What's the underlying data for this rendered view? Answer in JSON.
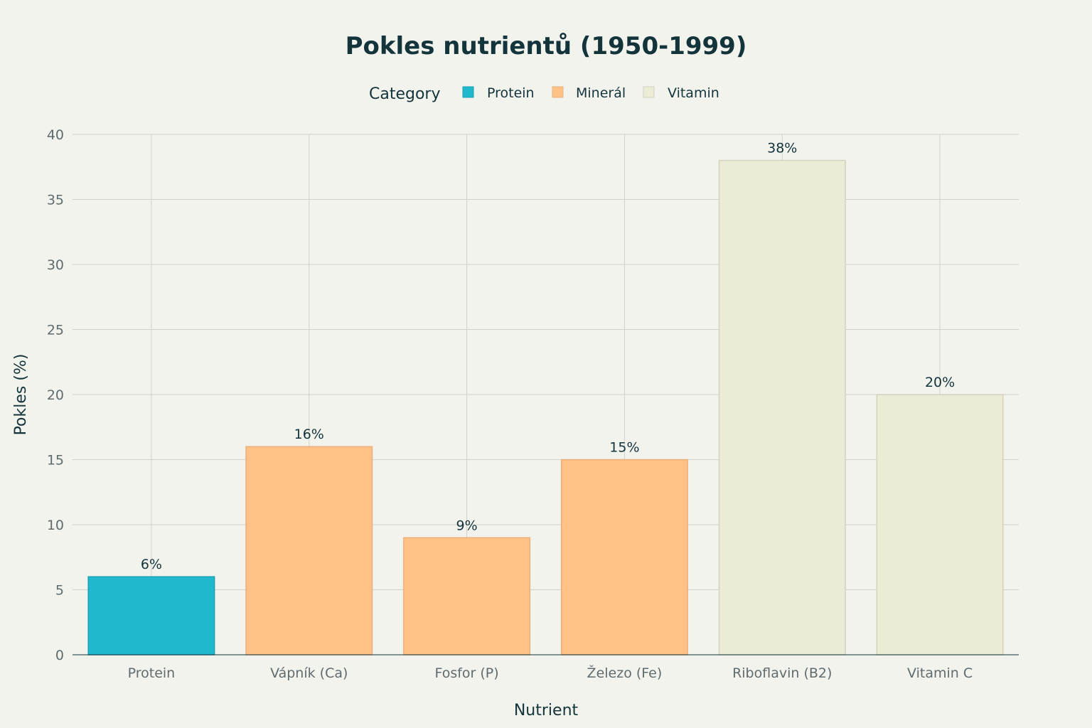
{
  "chart_data": {
    "type": "bar",
    "title": "Pokles nutrientů (1950-1999)",
    "xlabel": "Nutrient",
    "ylabel": "Pokles (%)",
    "ylim": [
      0,
      40
    ],
    "yticks": [
      0,
      5,
      10,
      15,
      20,
      25,
      30,
      35,
      40
    ],
    "grid": true,
    "legend": {
      "title": "Category",
      "placement": "top-center",
      "entries": [
        {
          "name": "Protein",
          "color": "#1fb8cd"
        },
        {
          "name": "Minerál",
          "color": "#ffc185"
        },
        {
          "name": "Vitamin",
          "color": "#ecebd5"
        }
      ]
    },
    "categories": [
      "Protein",
      "Vápník (Ca)",
      "Fosfor (P)",
      "Železo (Fe)",
      "Riboflavin (B2)",
      "Vitamin C"
    ],
    "values": [
      6,
      16,
      9,
      15,
      38,
      20
    ],
    "bar_category": [
      "Protein",
      "Minerál",
      "Minerál",
      "Minerál",
      "Vitamin",
      "Vitamin"
    ],
    "data_labels": [
      "6%",
      "16%",
      "9%",
      "15%",
      "38%",
      "20%"
    ]
  },
  "colors": {
    "background": "#f3f3ee",
    "bar_stroke": {
      "Protein": "#1aa3b6",
      "Minerál": "#e9b07a",
      "Vitamin": "#d3d2bd"
    }
  }
}
